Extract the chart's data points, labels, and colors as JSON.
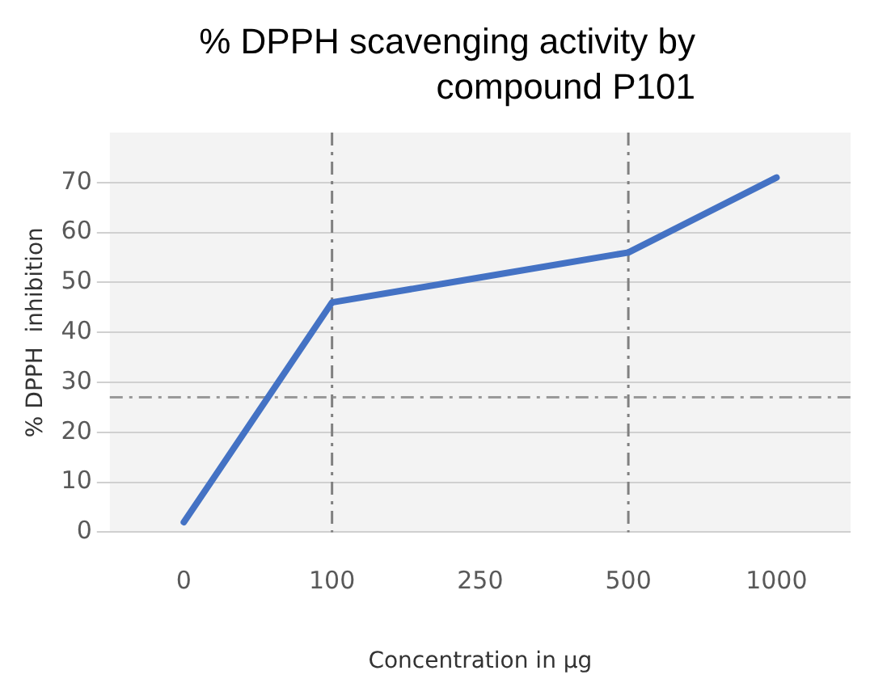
{
  "chart_data": {
    "type": "line",
    "title": "% DPPH scavenging activity by compound P101",
    "xlabel": "Concentration in µg",
    "ylabel": "% DPPH  inhibition",
    "categories": [
      "0",
      "100",
      "250",
      "500",
      "1000"
    ],
    "series": [
      {
        "color": "#4472c4",
        "values": [
          2,
          46,
          51,
          56,
          71
        ]
      }
    ],
    "ylim": [
      0,
      80
    ],
    "yticks": [
      0,
      10,
      20,
      30,
      40,
      50,
      60,
      70
    ],
    "grid": "y",
    "legend": false,
    "marker": "none",
    "line_style": "solid",
    "ref_lines": [
      {
        "axis": "x",
        "value": "100",
        "color": "#808080",
        "line_style": "dashed"
      },
      {
        "axis": "x",
        "value": "500",
        "color": "#808080",
        "line_style": "dashed"
      },
      {
        "axis": "y",
        "value": 27,
        "color": "#999999",
        "line_style": "dashed"
      }
    ]
  }
}
